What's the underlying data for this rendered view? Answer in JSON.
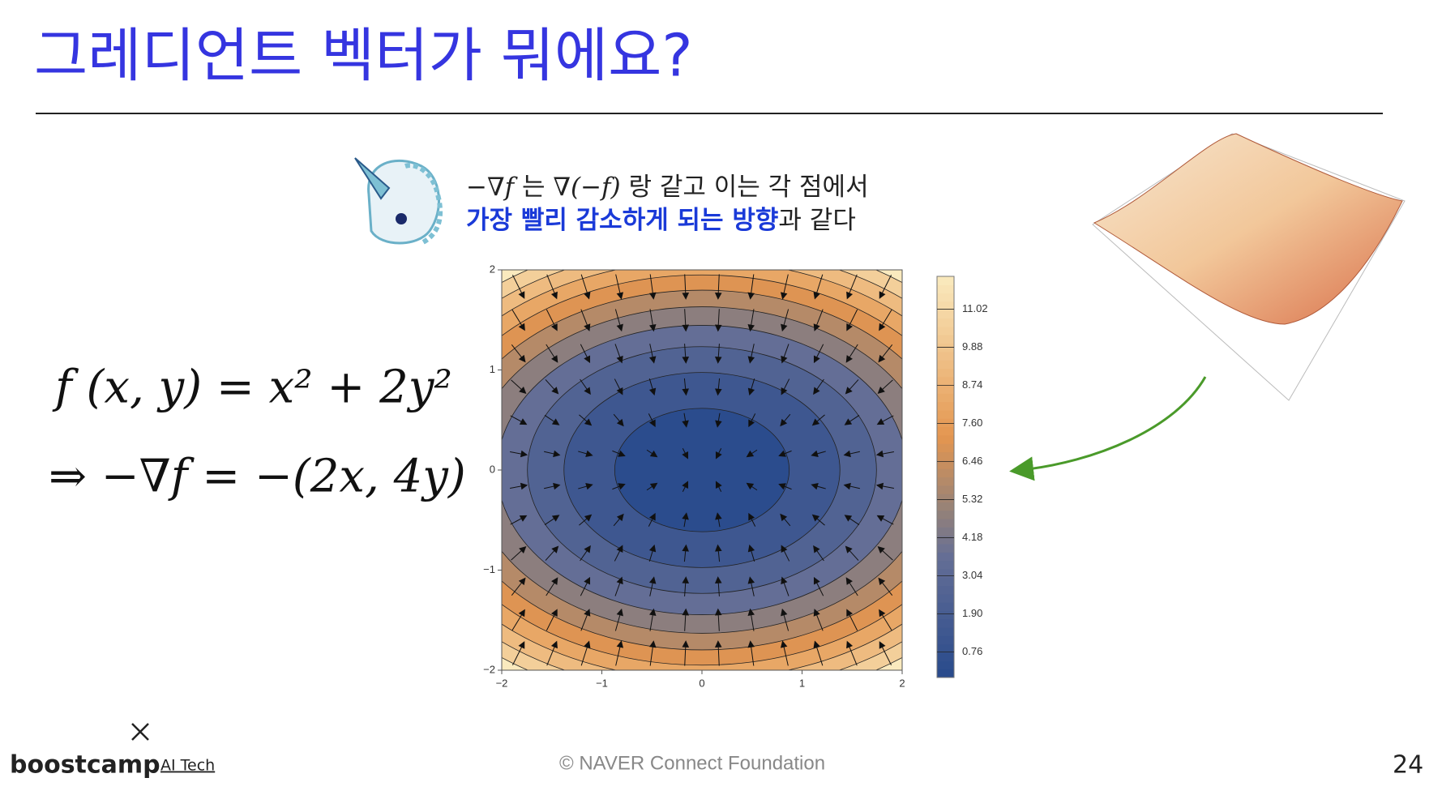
{
  "title": "그레디언트 벡터가 뭐에요?",
  "note": {
    "math1": "−∇f",
    "text1": "는",
    "math2": "∇(−f)",
    "text2": "랑 같고 이는 각 점에서",
    "highlight": "가장 빨리 감소하게 되는 방향",
    "text3": "과 같다"
  },
  "formulas": [
    "f (x, y) = x² + 2y²",
    "⇒ −∇f = −(2x, 4y)"
  ],
  "chart_data": {
    "type": "contour",
    "xlim": [
      -2,
      2
    ],
    "ylim": [
      -2,
      2
    ],
    "xticks": [
      {
        "value": -2,
        "label": "−2"
      },
      {
        "value": -1,
        "label": "−1"
      },
      0,
      1,
      2
    ],
    "yticks": [
      {
        "value": -2,
        "label": "−2"
      },
      {
        "value": -1,
        "label": "−1"
      },
      0,
      1,
      2
    ],
    "clim": [
      0,
      12
    ],
    "cticks": [
      0.76,
      {
        "value": 1.9,
        "label": "1.90"
      },
      3.04,
      4.18,
      5.32,
      6.46,
      {
        "value": 7.6,
        "label": "7.60"
      },
      8.74,
      9.88,
      11.02
    ]
  },
  "footer": {
    "brand": "boostcamp",
    "sub": "AI Tech",
    "copyright": "©  NAVER Connect Foundation",
    "page": "24"
  }
}
